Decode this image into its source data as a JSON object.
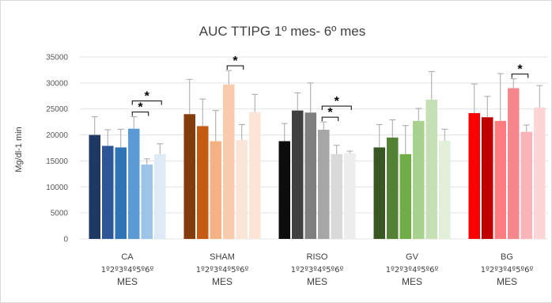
{
  "chart_data": {
    "type": "bar",
    "title": "AUC TTIPG 1º mes- 6º mes",
    "ylabel": "Mg/dl-1 min",
    "ylim": [
      0,
      35000
    ],
    "yticks": [
      0,
      5000,
      10000,
      15000,
      20000,
      25000,
      30000,
      35000
    ],
    "months_label": "1º2º3º4º5º6º",
    "x_group_suffix": "MES",
    "grid": true,
    "legend": "none",
    "groups": [
      {
        "name": "CA",
        "values": [
          20000,
          17900,
          17600,
          21200,
          14300,
          16300
        ],
        "errors": [
          3500,
          3100,
          3500,
          2300,
          1100,
          2000
        ],
        "colors": [
          "#1f3864",
          "#2e5597",
          "#2f75b5",
          "#5b9bd5",
          "#9dc3e6",
          "#deebf7"
        ],
        "significance": [
          {
            "from": 3,
            "to": 4,
            "level": 0,
            "label": "*"
          },
          {
            "from": 3,
            "to": 5,
            "level": 1,
            "label": "*"
          }
        ]
      },
      {
        "name": "SHAM",
        "values": [
          24000,
          21700,
          18800,
          29700,
          19000,
          24400
        ],
        "errors": [
          6700,
          5200,
          5900,
          2700,
          3000,
          3400
        ],
        "colors": [
          "#843c0c",
          "#c55a11",
          "#f4b183",
          "#f8cbad",
          "#fbe5d6",
          "#fce4d6"
        ],
        "significance": [
          {
            "from": 3,
            "to": 4,
            "level": 0,
            "label": "*"
          }
        ]
      },
      {
        "name": "RISO",
        "values": [
          18800,
          24700,
          24300,
          21000,
          16300,
          16500
        ],
        "errors": [
          3400,
          3400,
          5700,
          1500,
          1700,
          400
        ],
        "colors": [
          "#0d0d0d",
          "#404040",
          "#7f7f7f",
          "#a6a6a6",
          "#d9d9d9",
          "#ededed"
        ],
        "significance": [
          {
            "from": 3,
            "to": 4,
            "level": 0,
            "label": "*"
          },
          {
            "from": 3,
            "to": 5,
            "level": 1,
            "label": "*"
          }
        ]
      },
      {
        "name": "GV",
        "values": [
          17600,
          19500,
          16300,
          22700,
          26800,
          18900
        ],
        "errors": [
          4400,
          3400,
          5500,
          2400,
          5400,
          2200
        ],
        "colors": [
          "#385723",
          "#548235",
          "#70ad47",
          "#a9d18e",
          "#c5e0b4",
          "#e2f0d9"
        ],
        "significance": []
      },
      {
        "name": "BG",
        "values": [
          24200,
          23400,
          22700,
          29000,
          20600,
          25300
        ],
        "errors": [
          5600,
          4000,
          9100,
          1800,
          1300,
          4200
        ],
        "colors": [
          "#ff0000",
          "#c00000",
          "#ff7c80",
          "#f4868c",
          "#f8b4b8",
          "#fcd5d7"
        ],
        "significance": [
          {
            "from": 3,
            "to": 4,
            "level": 0,
            "label": "*"
          }
        ]
      }
    ]
  }
}
